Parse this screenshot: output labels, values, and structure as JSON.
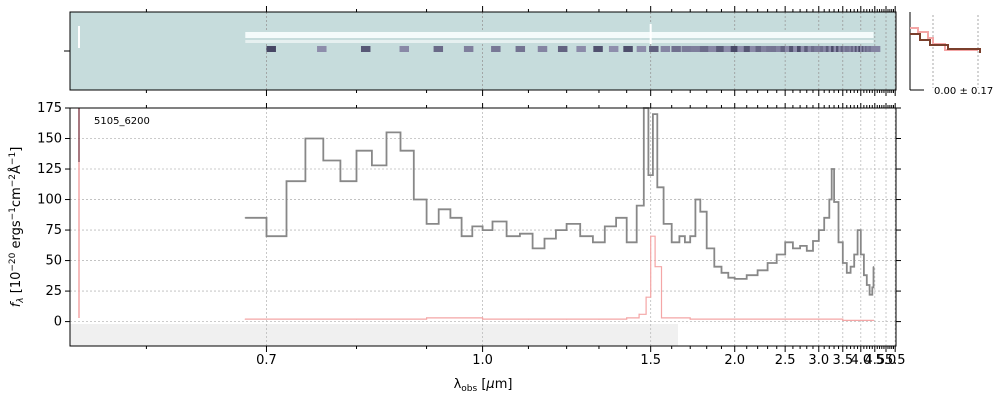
{
  "chart_data": {
    "type": "line",
    "object_id": "5105_6200",
    "xlabel": "λ_obs [μm]",
    "ylabel": "f_λ [10^-20 ergs^-1 cm^-2 Å^-1]",
    "x_scale": "reciprocal",
    "xlim": [
      0.55,
      5.55
    ],
    "ylim": [
      -20,
      175
    ],
    "x_ticks": [
      0.7,
      1.0,
      1.5,
      2.0,
      2.5,
      3.0,
      3.5,
      4.0,
      4.5,
      5.0,
      5.5
    ],
    "x_tick_labels": [
      "0.7",
      "1.0",
      "1.5",
      "2.0",
      "2.5",
      "3.0",
      "3.5",
      "4.0",
      "4.5",
      "5.0",
      "5.5"
    ],
    "y_ticks": [
      0,
      25,
      50,
      75,
      100,
      125,
      150,
      175
    ],
    "grid": true,
    "histogram_label": "0.00 ± 0.17",
    "colors": {
      "flux": "#888888",
      "error": "#f4a6a6",
      "image_bg": "#c6dcdc",
      "hist": "#7a3f2c"
    },
    "series": [
      {
        "role": "flux",
        "x": [
          0.68,
          0.7,
          0.72,
          0.74,
          0.76,
          0.78,
          0.8,
          0.82,
          0.84,
          0.86,
          0.88,
          0.9,
          0.92,
          0.94,
          0.96,
          0.98,
          1.0,
          1.02,
          1.05,
          1.08,
          1.11,
          1.14,
          1.17,
          1.2,
          1.24,
          1.28,
          1.32,
          1.36,
          1.4,
          1.44,
          1.47,
          1.49,
          1.51,
          1.53,
          1.56,
          1.6,
          1.64,
          1.67,
          1.7,
          1.73,
          1.76,
          1.8,
          1.85,
          1.9,
          1.95,
          2.0,
          2.1,
          2.2,
          2.3,
          2.4,
          2.5,
          2.6,
          2.7,
          2.8,
          2.9,
          3.0,
          3.1,
          3.2,
          3.25,
          3.3,
          3.4,
          3.5,
          3.6,
          3.7,
          3.8,
          3.9,
          4.0,
          4.1,
          4.2,
          4.3,
          4.4,
          4.45
        ],
        "y": [
          85,
          70,
          115,
          150,
          132,
          115,
          140,
          128,
          155,
          140,
          100,
          80,
          92,
          85,
          70,
          78,
          75,
          82,
          70,
          72,
          60,
          68,
          75,
          80,
          70,
          65,
          78,
          85,
          65,
          95,
          175,
          120,
          170,
          110,
          80,
          65,
          70,
          65,
          70,
          100,
          90,
          60,
          45,
          40,
          36,
          35,
          38,
          42,
          48,
          55,
          65,
          60,
          62,
          58,
          66,
          75,
          85,
          100,
          125,
          98,
          65,
          48,
          40,
          45,
          55,
          75,
          55,
          38,
          30,
          22,
          28,
          45
        ]
      },
      {
        "role": "error",
        "x": [
          0.68,
          0.8,
          0.9,
          1.0,
          1.1,
          1.2,
          1.3,
          1.4,
          1.45,
          1.48,
          1.5,
          1.52,
          1.55,
          1.7,
          2.0,
          2.5,
          3.0,
          3.5,
          4.0,
          4.45
        ],
        "y": [
          2,
          2,
          3,
          2,
          2,
          2,
          2,
          3,
          6,
          20,
          70,
          45,
          3,
          2,
          2,
          2,
          2,
          1,
          1,
          1
        ]
      }
    ]
  }
}
